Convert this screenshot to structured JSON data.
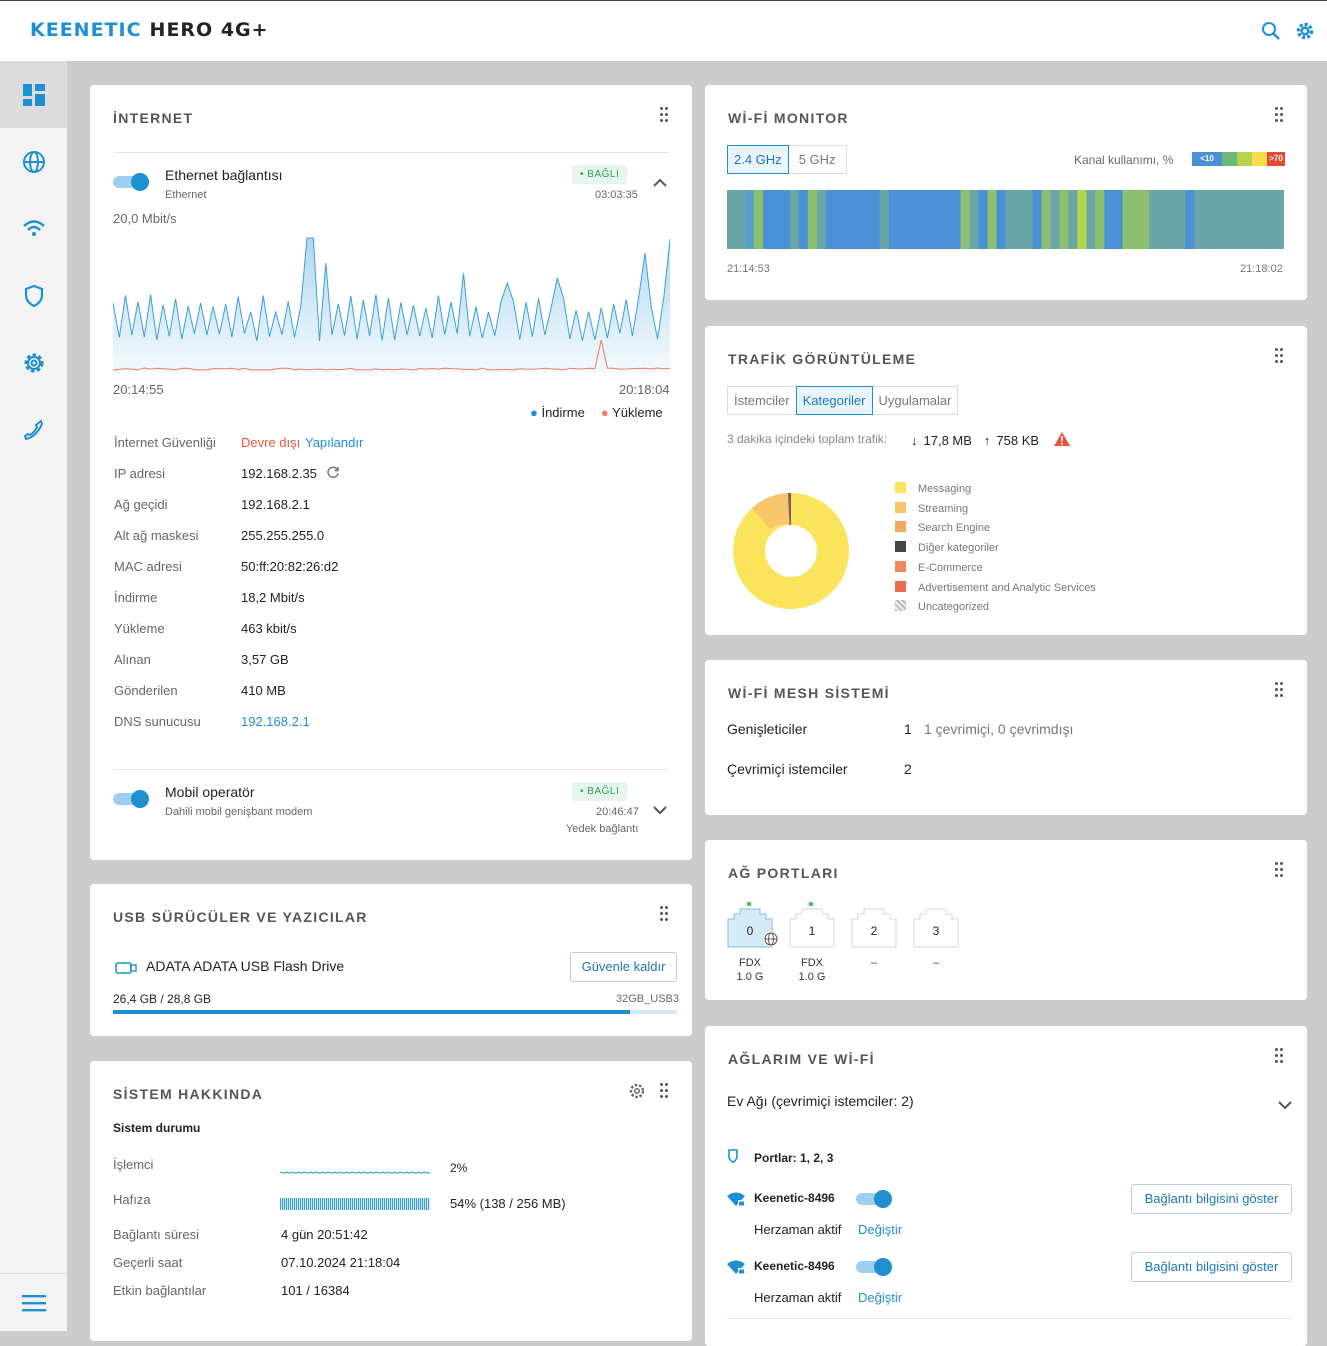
{
  "header": {
    "brand": "KEENETIC",
    "model": "HERO 4G+"
  },
  "internet": {
    "title": "İNTERNET",
    "ethernet": {
      "name": "Ethernet bağlantısı",
      "sub": "Ethernet",
      "status": "BAĞLI",
      "uptime": "03:03:35"
    },
    "chart": {
      "max_label": "20,0 Mbit/s",
      "start": "20:14:55",
      "end": "20:18:04",
      "legend_down": "İndirme",
      "legend_up": "Yükleme"
    },
    "security_label": "İnternet Güvenliği",
    "security_value": "Devre dışı",
    "security_action": "Yapılandır",
    "rows": [
      {
        "label": "IP adresi",
        "value": "192.168.2.35"
      },
      {
        "label": "Ağ geçidi",
        "value": "192.168.2.1"
      },
      {
        "label": "Alt ağ maskesi",
        "value": "255.255.255.0"
      },
      {
        "label": "MAC adresi",
        "value": "50:ff:20:82:26:d2"
      },
      {
        "label": "İndirme",
        "value": "18,2 Mbit/s"
      },
      {
        "label": "Yükleme",
        "value": "463 kbit/s"
      },
      {
        "label": "Alınan",
        "value": "3,57 GB"
      },
      {
        "label": "Gönderilen",
        "value": "410 MB"
      }
    ],
    "dns_label": "DNS sunucusu",
    "dns_value": "192.168.2.1",
    "mobile": {
      "name": "Mobil operatör",
      "sub": "Dahili mobil genişbant modem",
      "status": "BAĞLI",
      "uptime": "20:46:47",
      "role": "Yedek bağlantı"
    }
  },
  "usb": {
    "title": "USB SÜRÜCÜLER VE YAZICILAR",
    "device": "ADATA ADATA USB Flash Drive",
    "eject": "Güvenle kaldır",
    "usage": "26,4 GB / 28,8 GB",
    "label": "32GB_USB3",
    "fill": 0.917
  },
  "system": {
    "title": "SİSTEM HAKKINDA",
    "subtitle": "Sistem durumu",
    "cpu_label": "İşlemci",
    "cpu_value": "2%",
    "mem_label": "Hafıza",
    "mem_value": "54% (138 / 256 MB)",
    "rows": [
      {
        "label": "Bağlantı süresi",
        "value": "4 gün 20:51:42"
      },
      {
        "label": "Geçerli saat",
        "value": "07.10.2024 21:18:04"
      },
      {
        "label": "Etkin bağlantılar",
        "value": "101 / 16384"
      }
    ]
  },
  "wifi_monitor": {
    "title": "Wİ-Fİ MONITOR",
    "band1": "2.4 GHz",
    "band2": "5 GHz",
    "usage_label": "Kanal kullanımı, %",
    "scale_min": "<10",
    "scale_max": ">70",
    "start": "21:14:53",
    "end": "21:18:02"
  },
  "traffic": {
    "title": "TRAFİK GÖRÜNTÜLEME",
    "tabs": [
      "İstemciler",
      "Kategoriler",
      "Uygulamalar"
    ],
    "summary_label": "3 dakika içindeki toplam trafik:",
    "down": "17,8 MB",
    "up": "758 KB",
    "legend": [
      {
        "name": "Messaging",
        "color": "#f9e45c"
      },
      {
        "name": "Streaming",
        "color": "#f7c56a"
      },
      {
        "name": "Search Engine",
        "color": "#f0a85a"
      },
      {
        "name": "Diğer kategoriler",
        "color": "#444444"
      },
      {
        "name": "E-Commerce",
        "color": "#ee8a5a"
      },
      {
        "name": "Advertisement and Analytic Services",
        "color": "#ee6a4e"
      },
      {
        "name": "Uncategorized",
        "color": "#cccccc"
      }
    ]
  },
  "mesh": {
    "title": "Wİ-Fİ MESH SİSTEMİ",
    "ext_label": "Genişleticiler",
    "ext_count": "1",
    "ext_status": "1 çevrimiçi, 0 çevrimdışı",
    "clients_label": "Çevrimiçi istemciler",
    "clients_count": "2"
  },
  "ports": {
    "title": "AĞ PORTLARI",
    "items": [
      {
        "num": "0",
        "l1": "FDX",
        "l2": "1.0 G"
      },
      {
        "num": "1",
        "l1": "FDX",
        "l2": "1.0 G"
      },
      {
        "num": "2",
        "l1": "–",
        "l2": ""
      },
      {
        "num": "3",
        "l1": "–",
        "l2": ""
      }
    ]
  },
  "networks": {
    "title": "AĞLARIM VE Wİ-Fİ",
    "home": "Ev Ağı (çevrimiçi istemciler: 2)",
    "ports_label": "Portlar: 1, 2, 3",
    "wifi": [
      {
        "ssid": "Keenetic-8496",
        "schedule": "Herzaman aktif",
        "change": "Değiştir",
        "info": "Bağlantı bilgisini göster"
      },
      {
        "ssid": "Keenetic-8496",
        "schedule": "Herzaman aktif",
        "change": "Değiştir",
        "info": "Bağlantı bilgisini göster"
      }
    ]
  }
}
